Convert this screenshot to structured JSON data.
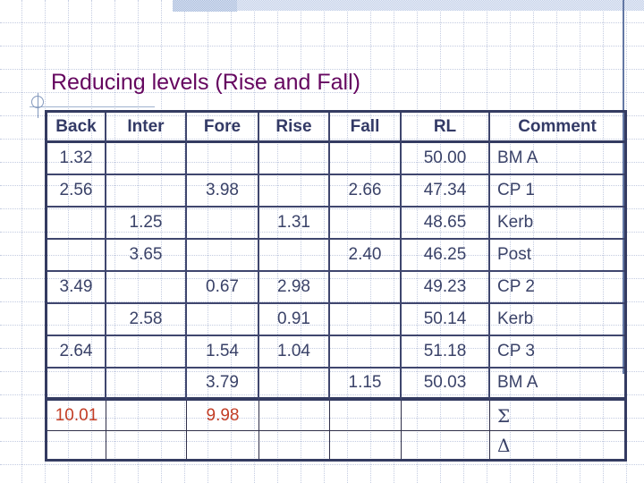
{
  "slide": {
    "title": "Reducing levels (Rise and Fall)"
  },
  "table": {
    "column_keys": [
      "back",
      "inter",
      "fore",
      "rise",
      "fall",
      "rl",
      "comment"
    ],
    "headers": [
      "Back",
      "Inter",
      "Fore",
      "Rise",
      "Fall",
      "RL",
      "Comment"
    ],
    "rows": [
      {
        "cells": [
          "1.32",
          "",
          "",
          "",
          "",
          "50.00",
          "BM A"
        ]
      },
      {
        "cells": [
          "2.56",
          "",
          "3.98",
          "",
          "2.66",
          "47.34",
          "CP 1"
        ]
      },
      {
        "cells": [
          "",
          "1.25",
          "",
          "1.31",
          "",
          "48.65",
          "Kerb"
        ]
      },
      {
        "cells": [
          "",
          "3.65",
          "",
          "",
          "2.40",
          "46.25",
          "Post"
        ]
      },
      {
        "cells": [
          "3.49",
          "",
          "0.67",
          "2.98",
          "",
          "49.23",
          "CP 2"
        ]
      },
      {
        "cells": [
          "",
          "2.58",
          "",
          "0.91",
          "",
          "50.14",
          "Kerb"
        ]
      },
      {
        "cells": [
          "2.64",
          "",
          "1.54",
          "1.04",
          "",
          "51.18",
          "CP 3"
        ]
      },
      {
        "cells": [
          "",
          "",
          "3.79",
          "",
          "1.15",
          "50.03",
          "BM A"
        ]
      },
      {
        "cells": [
          "10.01",
          "",
          "9.98",
          "",
          "",
          "",
          "Σ"
        ],
        "summary": true,
        "accent_cells": [
          0,
          2
        ],
        "serif_cells": [
          6
        ]
      },
      {
        "cells": [
          "",
          "",
          "",
          "",
          "",
          "",
          "Δ"
        ],
        "summary": true,
        "serif_cells": [
          6
        ]
      }
    ]
  },
  "colors": {
    "title_purple": "#65065f",
    "table_navy": "#3a4268",
    "accent_red": "#c33d25",
    "decor_blue": "#a9bcdd"
  }
}
